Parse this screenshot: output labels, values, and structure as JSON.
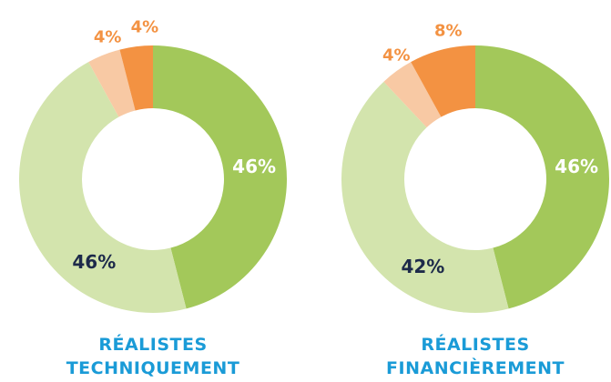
{
  "chart_data": [
    {
      "type": "donut",
      "title": "RÉALISTES TECHNIQUEMENT",
      "values": [
        46,
        46,
        4,
        4
      ],
      "value_labels": [
        "46%",
        "46%",
        "4%",
        "4%"
      ],
      "colors": [
        "#a3c85a",
        "#d3e4ad",
        "#f8c9a4",
        "#f39242"
      ]
    },
    {
      "type": "donut",
      "title": "RÉALISTES FINANCIÈREMENT",
      "values": [
        46,
        42,
        4,
        8
      ],
      "value_labels": [
        "46%",
        "42%",
        "4%",
        "8%"
      ],
      "colors": [
        "#a3c85a",
        "#d3e4ad",
        "#f8c9a4",
        "#f39242"
      ]
    }
  ]
}
